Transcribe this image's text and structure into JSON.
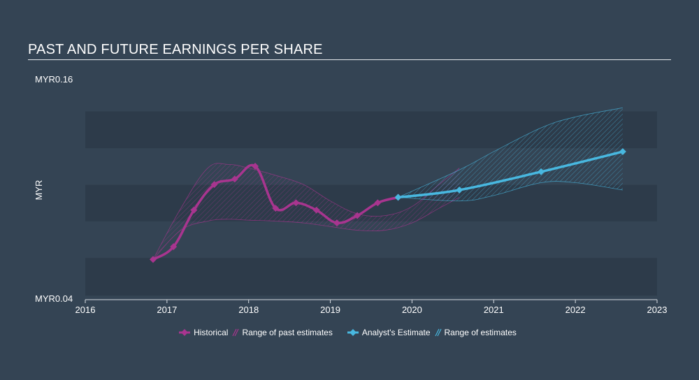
{
  "title": "PAST AND FUTURE EARNINGS PER SHARE",
  "legend": {
    "historical": "Historical",
    "past_range": "Range of past estimates",
    "analyst": "Analyst's Estimate",
    "future_range": "Range of estimates"
  },
  "colors": {
    "background": "#344454",
    "band": "#2d3b4a",
    "historical": "#a8358f",
    "past_range": "#a8358f",
    "analyst": "#48b8e0",
    "future_range": "#48b8e0"
  },
  "chart_data": {
    "type": "line",
    "title": "PAST AND FUTURE EARNINGS PER SHARE",
    "ylabel": "MYR",
    "xlabel": "",
    "y_top_label": "MYR0.16",
    "y_bottom_label": "MYR0.04",
    "ylim": [
      0.04,
      0.16
    ],
    "xlim": [
      2016,
      2023
    ],
    "x_ticks": [
      "2016",
      "2017",
      "2018",
      "2019",
      "2020",
      "2021",
      "2022",
      "2023"
    ],
    "series": [
      {
        "name": "Historical",
        "points": [
          [
            2016.83,
            0.062
          ],
          [
            2017.08,
            0.069
          ],
          [
            2017.33,
            0.089
          ],
          [
            2017.58,
            0.103
          ],
          [
            2017.83,
            0.106
          ],
          [
            2018.08,
            0.113
          ],
          [
            2018.33,
            0.09
          ],
          [
            2018.58,
            0.093
          ],
          [
            2018.83,
            0.089
          ],
          [
            2019.08,
            0.082
          ],
          [
            2019.33,
            0.086
          ],
          [
            2019.58,
            0.093
          ],
          [
            2019.83,
            0.096
          ]
        ]
      },
      {
        "name": "Analyst's Estimate",
        "points": [
          [
            2019.83,
            0.096
          ],
          [
            2020.58,
            0.1
          ],
          [
            2021.58,
            0.11
          ],
          [
            2022.58,
            0.121
          ]
        ]
      }
    ],
    "ranges": [
      {
        "name": "Range of past estimates",
        "upper": [
          [
            2016.83,
            0.062
          ],
          [
            2017.17,
            0.09
          ],
          [
            2017.5,
            0.112
          ],
          [
            2017.75,
            0.114
          ],
          [
            2018.0,
            0.112
          ],
          [
            2018.33,
            0.108
          ],
          [
            2018.67,
            0.103
          ],
          [
            2019.0,
            0.094
          ],
          [
            2019.33,
            0.087
          ],
          [
            2019.67,
            0.086
          ],
          [
            2020.0,
            0.091
          ],
          [
            2020.33,
            0.103
          ],
          [
            2020.58,
            0.112
          ]
        ],
        "lower": [
          [
            2016.83,
            0.062
          ],
          [
            2017.17,
            0.078
          ],
          [
            2017.5,
            0.083
          ],
          [
            2017.75,
            0.084
          ],
          [
            2018.0,
            0.0835
          ],
          [
            2018.33,
            0.083
          ],
          [
            2018.67,
            0.082
          ],
          [
            2019.0,
            0.08
          ],
          [
            2019.33,
            0.078
          ],
          [
            2019.67,
            0.078
          ],
          [
            2020.0,
            0.082
          ],
          [
            2020.33,
            0.09
          ],
          [
            2020.58,
            0.096
          ]
        ]
      },
      {
        "name": "Range of estimates",
        "upper": [
          [
            2019.83,
            0.096
          ],
          [
            2020.58,
            0.111
          ],
          [
            2021.0,
            0.121
          ],
          [
            2021.58,
            0.134
          ],
          [
            2022.0,
            0.14
          ],
          [
            2022.58,
            0.145
          ]
        ],
        "lower": [
          [
            2019.83,
            0.096
          ],
          [
            2020.58,
            0.094
          ],
          [
            2021.0,
            0.097
          ],
          [
            2021.58,
            0.104
          ],
          [
            2022.0,
            0.104
          ],
          [
            2022.58,
            0.1
          ]
        ]
      }
    ],
    "bands": [
      [
        0.0628,
        0.0422
      ],
      [
        0.1028,
        0.0829
      ],
      [
        0.143,
        0.1229
      ]
    ],
    "grid": false,
    "legend_position": "bottom"
  }
}
